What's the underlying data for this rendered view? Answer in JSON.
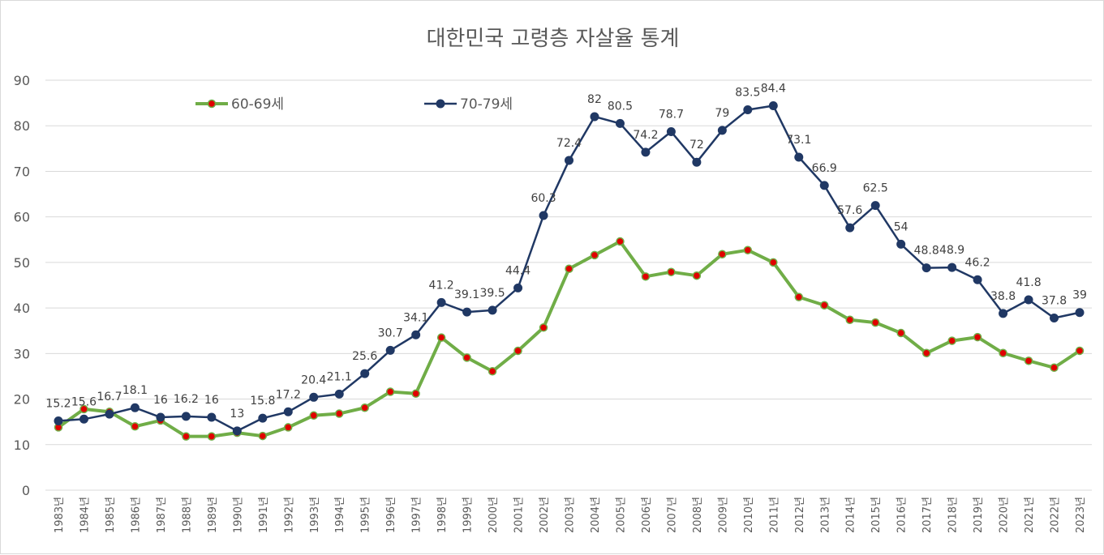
{
  "chart_data": {
    "type": "line",
    "title": "대한민국 고령층 자살율 통계",
    "xlabel": "",
    "ylabel": "",
    "ylim": [
      0,
      90
    ],
    "yticks": [
      "0",
      "10",
      "20",
      "30",
      "40",
      "50",
      "60",
      "70",
      "80",
      "90"
    ],
    "grid": true,
    "legend_position": "top-left",
    "categories": [
      "1983년",
      "1984년",
      "1985년",
      "1986년",
      "1987년",
      "1988년",
      "1989년",
      "1990년",
      "1991년",
      "1992년",
      "1993년",
      "1994년",
      "1995년",
      "1996년",
      "1997년",
      "1998년",
      "1999년",
      "2000년",
      "2001년",
      "2002년",
      "2003년",
      "2004년",
      "2005년",
      "2006년",
      "2007년",
      "2008년",
      "2009년",
      "2010년",
      "2011년",
      "2012년",
      "2013년",
      "2014년",
      "2015년",
      "2016년",
      "2017년",
      "2018년",
      "2019년",
      "2020년",
      "2021년",
      "2022년",
      "2023년"
    ],
    "series": [
      {
        "name": "60-69세",
        "color": "#70ad47",
        "marker_color": "#e00000",
        "show_labels": false,
        "values": [
          13.8,
          17.8,
          17.2,
          14.0,
          15.3,
          11.8,
          11.8,
          12.6,
          11.9,
          13.8,
          16.4,
          16.8,
          18.1,
          21.6,
          21.2,
          33.5,
          29.1,
          26.1,
          30.6,
          35.7,
          48.6,
          51.6,
          54.6,
          46.9,
          47.9,
          47.1,
          51.8,
          52.7,
          50.0,
          42.4,
          40.6,
          37.4,
          36.8,
          34.5,
          30.1,
          32.8,
          33.6,
          30.1,
          28.4,
          26.9,
          30.6
        ]
      },
      {
        "name": "70-79세",
        "color": "#203864",
        "marker_color": "#203864",
        "show_labels": true,
        "values": [
          15.2,
          15.6,
          16.7,
          18.1,
          16,
          16.2,
          16,
          13,
          15.8,
          17.2,
          20.4,
          21.1,
          25.6,
          30.7,
          34.1,
          41.2,
          39.1,
          39.5,
          44.4,
          60.3,
          72.4,
          82,
          80.5,
          74.2,
          78.7,
          72,
          79,
          83.5,
          84.4,
          73.1,
          66.9,
          57.6,
          62.5,
          54,
          48.8,
          48.9,
          46.2,
          38.8,
          41.8,
          37.8,
          39
        ],
        "labels": [
          "15.2",
          "15.6",
          "16.7",
          "18.1",
          "16",
          "16.2",
          "16",
          "13",
          "15.8",
          "17.2",
          "20.4",
          "21.1",
          "25.6",
          "30.7",
          "34.1",
          "41.2",
          "39.1",
          "39.5",
          "44.4",
          "60.3",
          "72.4",
          "82",
          "80.5",
          "74.2",
          "78.7",
          "72",
          "79",
          "83.5",
          "84.4",
          "73.1",
          "66.9",
          "57.6",
          "62.5",
          "54",
          "48.8",
          "48.9",
          "46.2",
          "38.8",
          "41.8",
          "37.8",
          "39"
        ]
      }
    ]
  }
}
